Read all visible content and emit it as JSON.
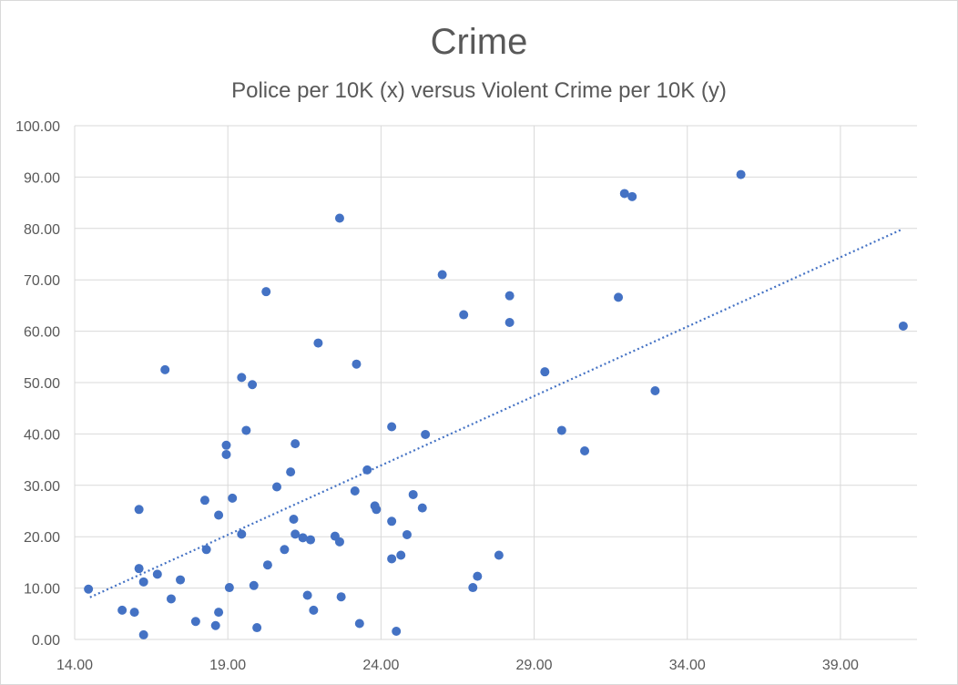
{
  "chart_data": {
    "type": "scatter",
    "title": "Crime",
    "subtitle": "Police per 10K (x) versus Violent Crime per 10K (y)",
    "xlabel": "",
    "ylabel": "",
    "xlim": [
      14.0,
      41.5
    ],
    "ylim": [
      0.0,
      100.0
    ],
    "x_ticks": [
      "14.00",
      "19.00",
      "24.00",
      "29.00",
      "34.00",
      "39.00"
    ],
    "x_tick_values": [
      14,
      19,
      24,
      29,
      34,
      39
    ],
    "y_ticks": [
      "0.00",
      "10.00",
      "20.00",
      "30.00",
      "40.00",
      "50.00",
      "60.00",
      "70.00",
      "80.00",
      "90.00",
      "100.00"
    ],
    "y_tick_values": [
      0,
      10,
      20,
      30,
      40,
      50,
      60,
      70,
      80,
      90,
      100
    ],
    "grid": true,
    "marker_color": "#4472c4",
    "trendline": {
      "type": "linear",
      "x": [
        14.5,
        41.0
      ],
      "y": [
        8.2,
        79.8
      ],
      "style": "dotted"
    },
    "points": [
      [
        14.45,
        9.8
      ],
      [
        15.55,
        5.7
      ],
      [
        15.95,
        5.3
      ],
      [
        16.1,
        25.3
      ],
      [
        16.1,
        13.8
      ],
      [
        16.25,
        11.2
      ],
      [
        16.25,
        0.9
      ],
      [
        16.7,
        12.7
      ],
      [
        16.95,
        52.5
      ],
      [
        17.15,
        7.9
      ],
      [
        17.45,
        11.6
      ],
      [
        17.95,
        3.5
      ],
      [
        18.25,
        27.1
      ],
      [
        18.3,
        17.5
      ],
      [
        18.6,
        2.7
      ],
      [
        18.7,
        24.2
      ],
      [
        18.7,
        5.3
      ],
      [
        18.95,
        37.8
      ],
      [
        18.95,
        36.0
      ],
      [
        19.05,
        10.1
      ],
      [
        19.15,
        27.5
      ],
      [
        19.45,
        51.0
      ],
      [
        19.45,
        20.5
      ],
      [
        19.6,
        40.7
      ],
      [
        19.8,
        49.6
      ],
      [
        19.85,
        10.5
      ],
      [
        19.95,
        2.3
      ],
      [
        20.25,
        67.7
      ],
      [
        20.3,
        14.5
      ],
      [
        20.6,
        29.7
      ],
      [
        20.85,
        17.5
      ],
      [
        21.05,
        32.6
      ],
      [
        21.15,
        23.4
      ],
      [
        21.2,
        38.1
      ],
      [
        21.2,
        20.5
      ],
      [
        21.45,
        19.8
      ],
      [
        21.6,
        8.6
      ],
      [
        21.7,
        19.4
      ],
      [
        21.8,
        5.7
      ],
      [
        21.95,
        57.7
      ],
      [
        22.5,
        20.1
      ],
      [
        22.65,
        82.0
      ],
      [
        22.65,
        19.0
      ],
      [
        22.7,
        8.3
      ],
      [
        23.15,
        28.9
      ],
      [
        23.2,
        53.6
      ],
      [
        23.3,
        3.1
      ],
      [
        23.55,
        33.0
      ],
      [
        23.8,
        26.0
      ],
      [
        23.85,
        25.3
      ],
      [
        24.35,
        41.4
      ],
      [
        24.35,
        23.0
      ],
      [
        24.35,
        15.7
      ],
      [
        24.5,
        1.6
      ],
      [
        24.65,
        16.4
      ],
      [
        24.85,
        20.4
      ],
      [
        25.05,
        28.2
      ],
      [
        25.35,
        25.6
      ],
      [
        25.45,
        39.9
      ],
      [
        26.0,
        71.0
      ],
      [
        26.7,
        63.2
      ],
      [
        27.0,
        10.1
      ],
      [
        27.15,
        12.3
      ],
      [
        27.85,
        16.4
      ],
      [
        28.2,
        66.9
      ],
      [
        28.2,
        61.7
      ],
      [
        29.35,
        52.1
      ],
      [
        29.9,
        40.7
      ],
      [
        30.65,
        36.7
      ],
      [
        31.75,
        66.6
      ],
      [
        31.95,
        86.8
      ],
      [
        32.2,
        86.2
      ],
      [
        32.95,
        48.4
      ],
      [
        35.75,
        90.5
      ],
      [
        41.05,
        61.0
      ]
    ]
  }
}
